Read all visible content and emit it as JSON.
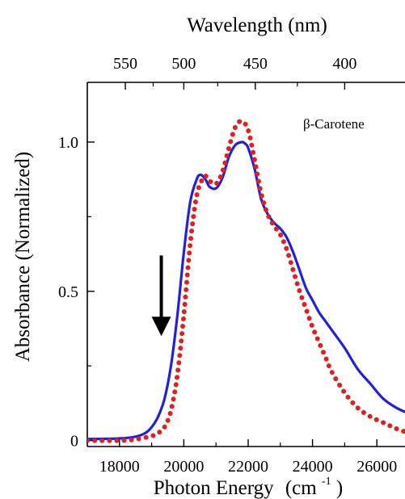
{
  "chart_data": {
    "type": "line",
    "title": "",
    "xlabel": "Photon Energy",
    "xlabel_unit_base": "(cm",
    "xlabel_unit_sup": "-1",
    "xlabel_unit_close": ")",
    "ylabel": "Absorbance (Normalized)",
    "x2label": "Wavelength (nm)",
    "xlim": [
      17000,
      27000
    ],
    "ylim": [
      -0.02,
      1.2
    ],
    "x_ticks": [
      18000,
      20000,
      22000,
      24000,
      26000
    ],
    "y_ticks": [
      0,
      0.5,
      1.0
    ],
    "y_tick_labels": [
      "0",
      "0.5",
      "1.0"
    ],
    "x2_ticks_nm": [
      550,
      500,
      450,
      400
    ],
    "grid": false,
    "annotation": "β-Carotene",
    "arrow_at": {
      "x": 19300,
      "y_from": 0.62,
      "y_to": 0.35
    },
    "series": [
      {
        "color": "#2020e0",
        "style": "solid",
        "x": [
          17000,
          18000,
          18500,
          18800,
          19000,
          19200,
          19400,
          19600,
          19800,
          20000,
          20200,
          20400,
          20500,
          20600,
          20700,
          20800,
          21000,
          21200,
          21400,
          21600,
          21800,
          21900,
          22000,
          22200,
          22400,
          22600,
          22800,
          23000,
          23200,
          23400,
          23600,
          23800,
          24000,
          24200,
          24400,
          24600,
          25000,
          25400,
          25800,
          26200,
          26600,
          27000
        ],
        "y": [
          0.005,
          0.007,
          0.013,
          0.025,
          0.045,
          0.08,
          0.14,
          0.25,
          0.42,
          0.63,
          0.8,
          0.875,
          0.89,
          0.885,
          0.87,
          0.85,
          0.845,
          0.88,
          0.95,
          0.99,
          1.0,
          0.995,
          0.98,
          0.91,
          0.81,
          0.76,
          0.73,
          0.71,
          0.68,
          0.63,
          0.57,
          0.51,
          0.47,
          0.43,
          0.4,
          0.37,
          0.31,
          0.24,
          0.19,
          0.14,
          0.11,
          0.09
        ]
      },
      {
        "color": "#e02020",
        "style": "dotted",
        "x": [
          17000,
          18000,
          18500,
          19000,
          19200,
          19400,
          19600,
          19800,
          20000,
          20200,
          20400,
          20600,
          20700,
          20800,
          21000,
          21200,
          21400,
          21600,
          21800,
          22000,
          22200,
          22400,
          22600,
          22800,
          23000,
          23200,
          23400,
          23600,
          23800,
          24000,
          24200,
          24400,
          24600,
          25000,
          25400,
          25800,
          26200,
          26600,
          27000
        ],
        "y": [
          0.0,
          0.0,
          0.004,
          0.015,
          0.025,
          0.045,
          0.1,
          0.22,
          0.42,
          0.66,
          0.82,
          0.88,
          0.885,
          0.87,
          0.86,
          0.9,
          0.98,
          1.05,
          1.07,
          1.04,
          0.94,
          0.83,
          0.76,
          0.72,
          0.69,
          0.64,
          0.57,
          0.5,
          0.44,
          0.38,
          0.33,
          0.28,
          0.23,
          0.16,
          0.11,
          0.08,
          0.06,
          0.04,
          0.025
        ]
      }
    ]
  }
}
